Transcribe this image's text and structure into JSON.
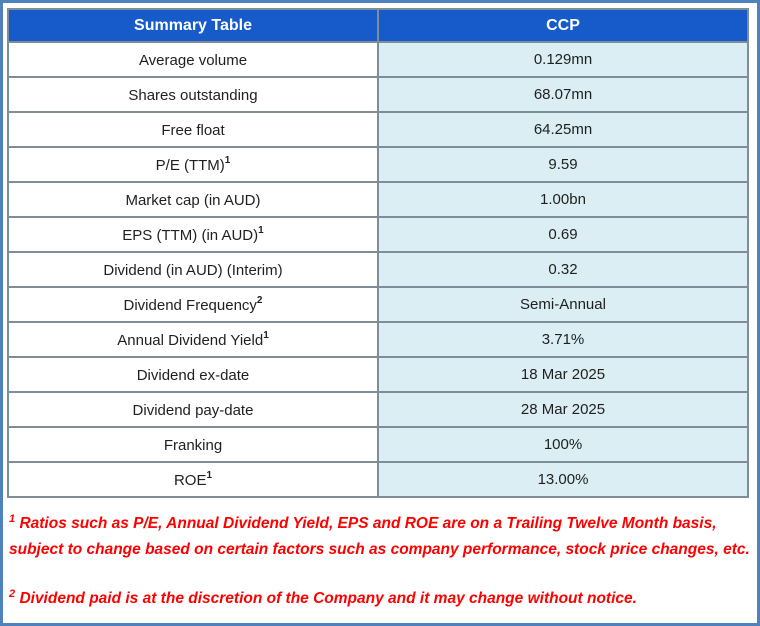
{
  "chart_data": {
    "type": "table",
    "title": "Summary Table",
    "columns": [
      "Summary Table",
      "CCP"
    ],
    "rows": [
      {
        "label": "Average volume",
        "sup": "",
        "value": "0.129mn"
      },
      {
        "label": "Shares outstanding",
        "sup": "",
        "value": "68.07mn"
      },
      {
        "label": "Free float",
        "sup": "",
        "value": "64.25mn"
      },
      {
        "label": "P/E (TTM)",
        "sup": "1",
        "value": "9.59"
      },
      {
        "label": "Market cap (in AUD)",
        "sup": "",
        "value": "1.00bn"
      },
      {
        "label": "EPS (TTM) (in AUD)",
        "sup": "1",
        "value": "0.69"
      },
      {
        "label": "Dividend (in AUD) (Interim)",
        "sup": "",
        "value": "0.32"
      },
      {
        "label": "Dividend Frequency",
        "sup": "2",
        "value": "Semi-Annual"
      },
      {
        "label": "Annual Dividend Yield",
        "sup": "1",
        "value": "3.71%"
      },
      {
        "label": "Dividend ex-date",
        "sup": "",
        "value": "18 Mar 2025"
      },
      {
        "label": "Dividend pay-date",
        "sup": "",
        "value": "28 Mar 2025"
      },
      {
        "label": "Franking",
        "sup": "",
        "value": "100%"
      },
      {
        "label": "ROE",
        "sup": "1",
        "value": "13.00%"
      }
    ],
    "footnotes": [
      {
        "sup": "1",
        "text": "Ratios such as P/E, Annual Dividend Yield, EPS and ROE are on a Trailing Twelve Month basis, subject to change based on certain factors such as company performance, stock price changes, etc."
      },
      {
        "sup": "2",
        "text": "Dividend paid is at the discretion of the Company and it may change without notice."
      }
    ],
    "layout_hints": {
      "grid": true,
      "legend": "none"
    }
  },
  "colors": {
    "header_blue": "#165bc9",
    "value_cell_blue": "#daeef3",
    "grid_border_gray": "#7e8d97",
    "outer_frame_blue": "#4f81bd",
    "footnote_red": "#ff0000",
    "header_text": "#ffffff",
    "cell_text": "#1f1f1f"
  }
}
